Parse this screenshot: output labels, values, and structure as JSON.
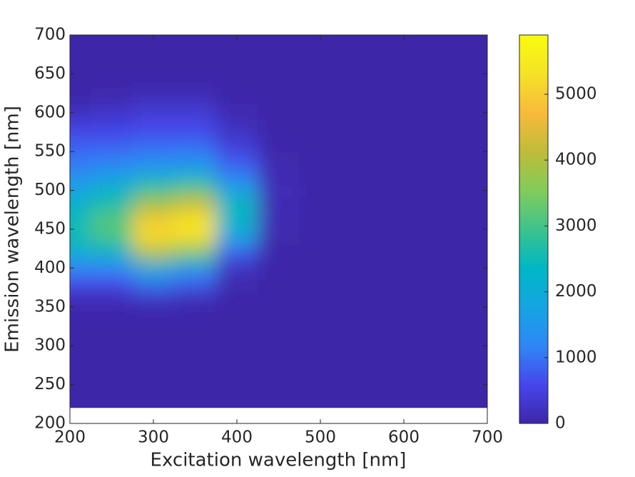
{
  "chart_data": {
    "type": "contourf",
    "xlabel": "Excitation wavelength [nm]",
    "ylabel": "Emission wavelength [nm]",
    "x": [
      200,
      250,
      300,
      350,
      400,
      450,
      500,
      550,
      600,
      650,
      700
    ],
    "y": [
      220,
      240,
      260,
      280,
      300,
      320,
      340,
      360,
      380,
      400,
      420,
      440,
      460,
      480,
      500,
      520,
      540,
      560,
      580,
      600,
      620,
      640,
      660,
      680,
      700
    ],
    "z": [
      [
        0,
        0,
        0,
        0,
        0,
        0,
        0,
        0,
        0,
        0,
        0
      ],
      [
        0,
        0,
        0,
        0,
        0,
        0,
        0,
        0,
        0,
        0,
        0
      ],
      [
        0,
        0,
        0,
        0,
        0,
        0,
        0,
        0,
        0,
        0,
        0
      ],
      [
        0,
        0,
        0,
        0,
        0,
        0,
        0,
        0,
        0,
        0,
        0
      ],
      [
        0,
        0,
        0,
        0,
        0,
        0,
        0,
        0,
        0,
        0,
        0
      ],
      [
        0,
        0,
        0,
        0,
        0,
        0,
        0,
        0,
        0,
        0,
        0
      ],
      [
        0,
        0,
        0,
        0,
        0,
        0,
        0,
        0,
        0,
        0,
        0
      ],
      [
        100,
        100,
        200,
        100,
        0,
        0,
        0,
        0,
        0,
        0,
        0
      ],
      [
        600,
        600,
        1000,
        800,
        50,
        0,
        0,
        0,
        0,
        0,
        0
      ],
      [
        1200,
        1200,
        2000,
        1500,
        200,
        0,
        0,
        0,
        0,
        0,
        0
      ],
      [
        2000,
        2200,
        4000,
        3400,
        800,
        0,
        0,
        0,
        0,
        0,
        0
      ],
      [
        2500,
        3000,
        5200,
        5200,
        1800,
        50,
        0,
        0,
        0,
        0,
        0
      ],
      [
        2500,
        3200,
        5000,
        5500,
        2200,
        100,
        0,
        0,
        0,
        0,
        0
      ],
      [
        2200,
        2700,
        4000,
        4400,
        2400,
        100,
        0,
        0,
        0,
        0,
        0
      ],
      [
        1800,
        2200,
        3000,
        3300,
        1800,
        150,
        0,
        0,
        0,
        0,
        0
      ],
      [
        1300,
        1600,
        1900,
        2000,
        1100,
        100,
        0,
        0,
        0,
        0,
        0
      ],
      [
        1000,
        1100,
        1200,
        1300,
        700,
        50,
        0,
        0,
        0,
        0,
        0
      ],
      [
        800,
        800,
        900,
        900,
        400,
        0,
        0,
        0,
        0,
        0,
        0
      ],
      [
        500,
        500,
        600,
        600,
        200,
        0,
        0,
        0,
        0,
        0,
        0
      ],
      [
        200,
        300,
        400,
        400,
        100,
        0,
        0,
        0,
        0,
        0,
        0
      ],
      [
        0,
        50,
        150,
        150,
        0,
        0,
        0,
        0,
        0,
        0,
        0
      ],
      [
        0,
        0,
        0,
        0,
        0,
        0,
        0,
        0,
        0,
        0,
        0
      ],
      [
        0,
        0,
        0,
        0,
        0,
        0,
        0,
        0,
        0,
        0,
        0
      ],
      [
        0,
        0,
        0,
        0,
        0,
        0,
        0,
        0,
        0,
        0,
        0
      ],
      [
        0,
        0,
        0,
        0,
        0,
        0,
        0,
        0,
        0,
        0,
        0
      ]
    ],
    "xlim": [
      200,
      700
    ],
    "xticks": [
      200,
      300,
      400,
      500,
      600,
      700
    ],
    "ylim": [
      200,
      700
    ],
    "yticks": [
      200,
      250,
      300,
      350,
      400,
      450,
      500,
      550,
      600,
      650,
      700
    ],
    "clim": [
      0,
      5900
    ],
    "cticks": [
      0,
      1000,
      2000,
      3000,
      4000,
      5000
    ],
    "colormap": "parula"
  }
}
